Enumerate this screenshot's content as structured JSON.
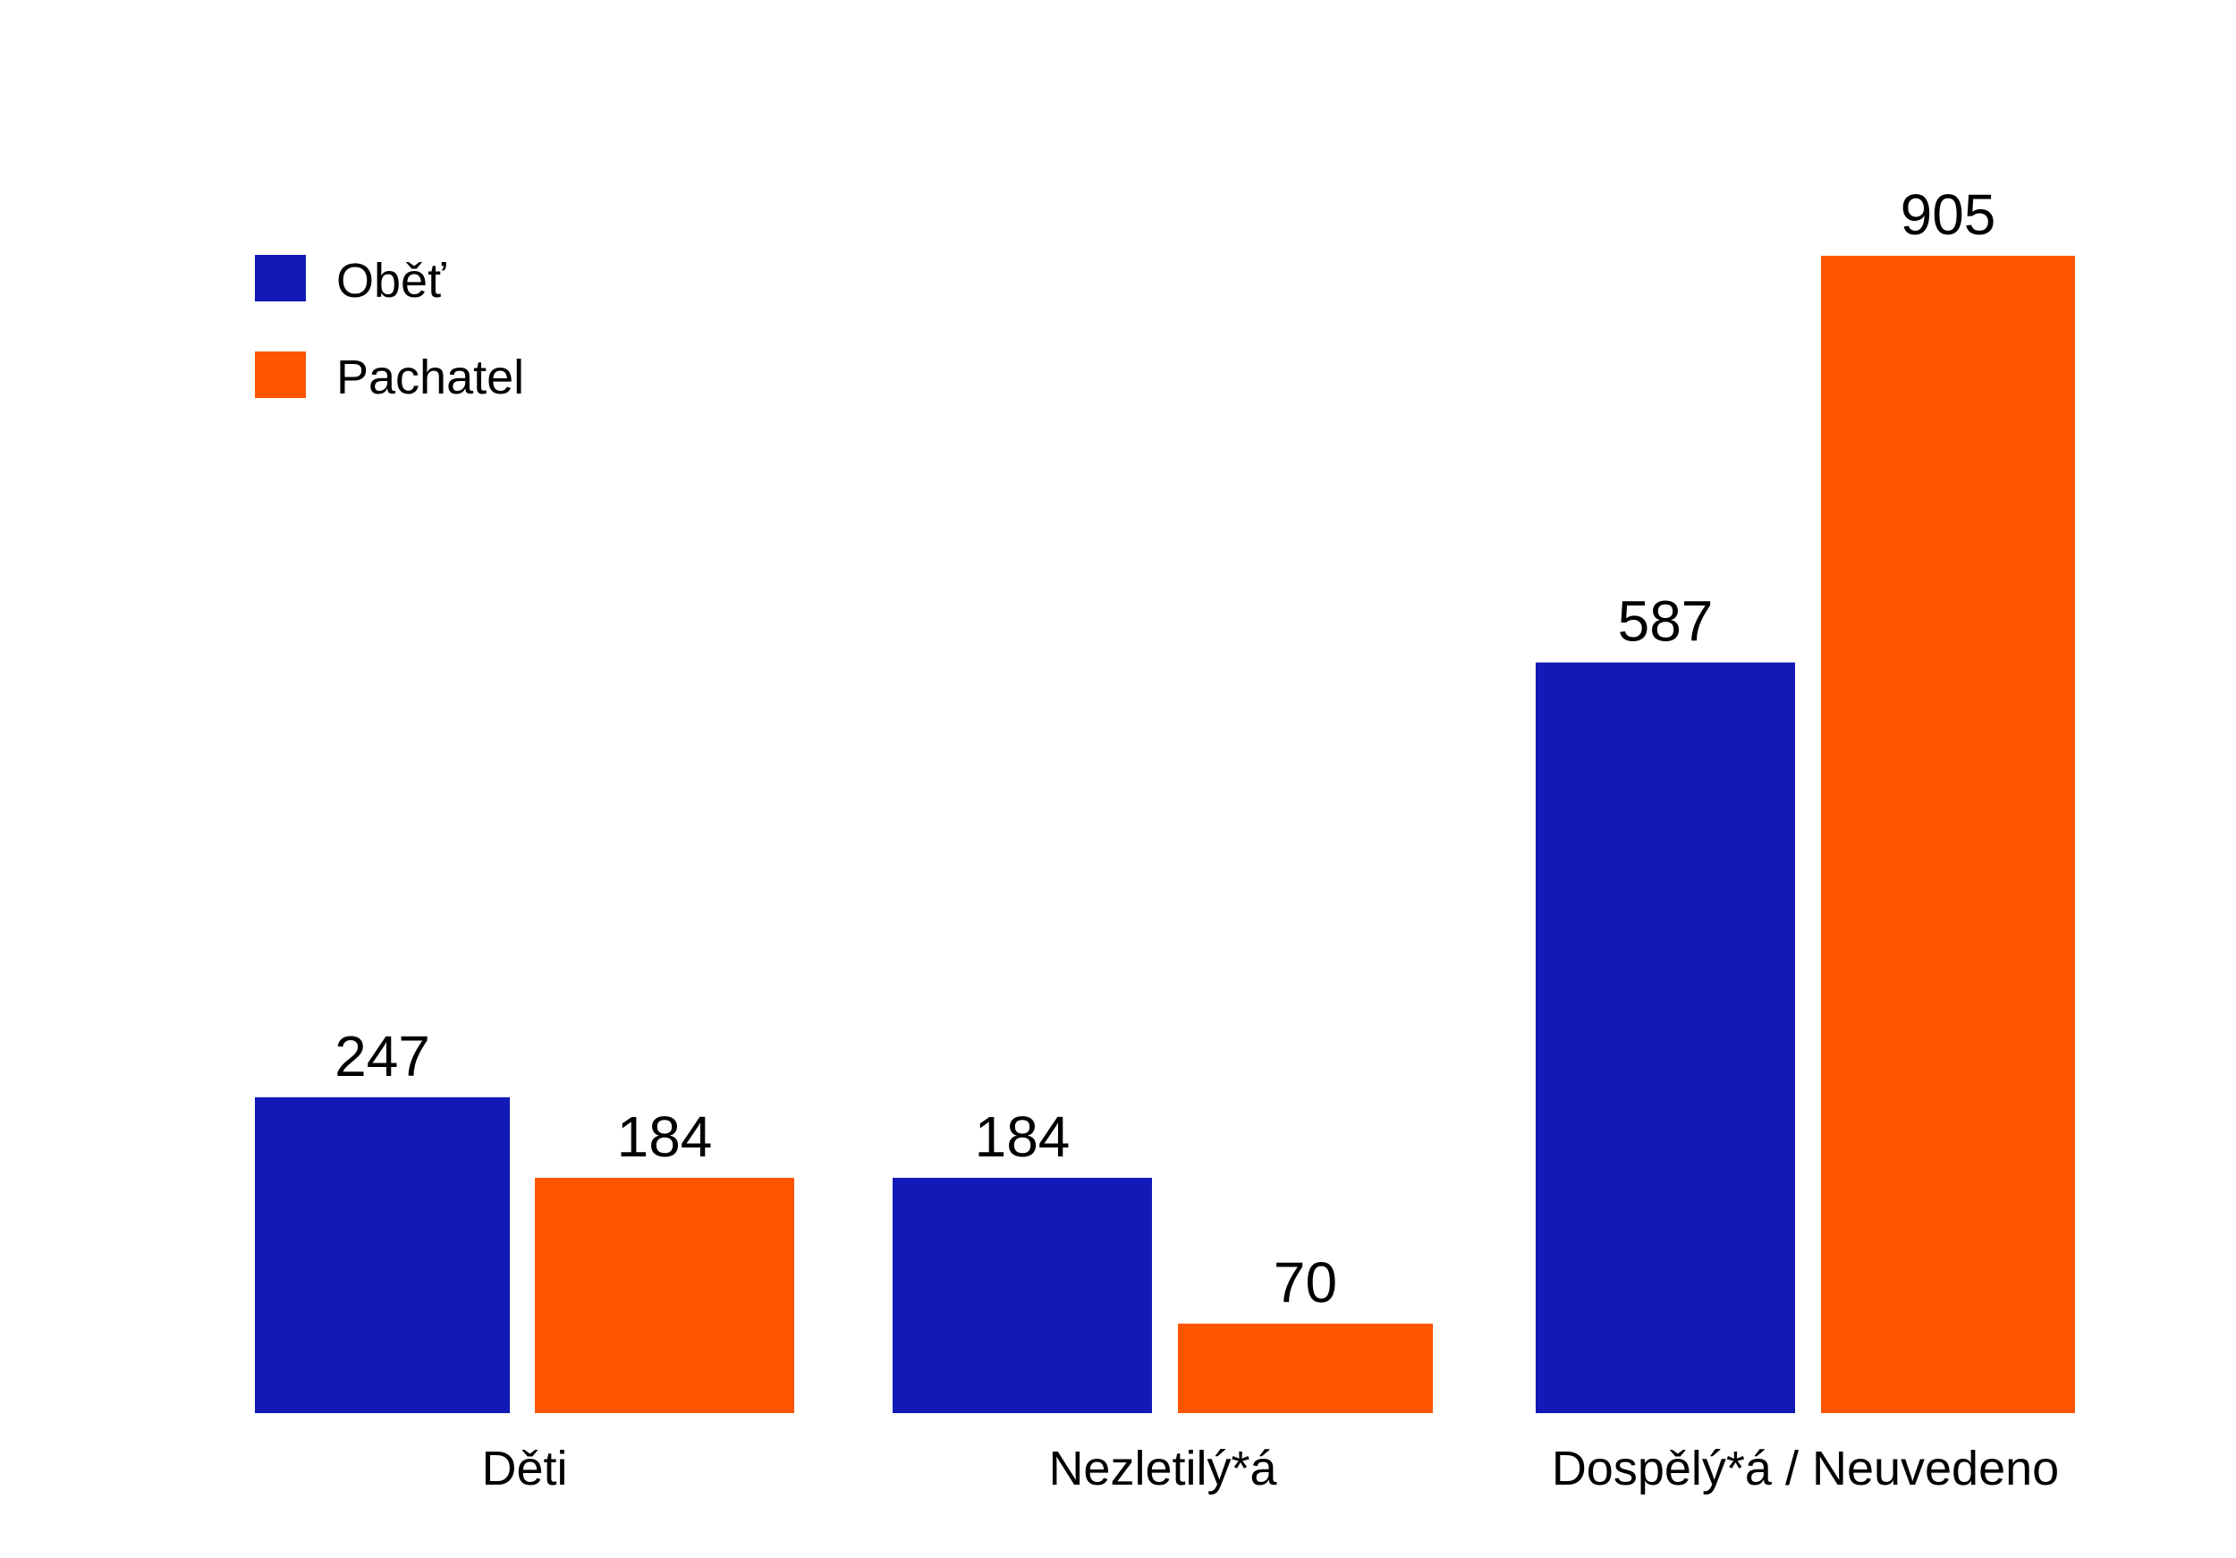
{
  "chart_data": {
    "type": "bar",
    "title": "",
    "xlabel": "",
    "ylabel": "",
    "categories": [
      "Děti",
      "Nezletilý*á",
      "Dospělý*á / Neuvedeno"
    ],
    "series": [
      {
        "name": "Oběť",
        "color": "#1219B7",
        "values": [
          247,
          184,
          587
        ]
      },
      {
        "name": "Pachatel",
        "color": "#FF5500",
        "values": [
          184,
          70,
          905
        ]
      }
    ],
    "ylim": [
      0,
      905
    ],
    "grid": false,
    "legend_position": "top-left"
  }
}
